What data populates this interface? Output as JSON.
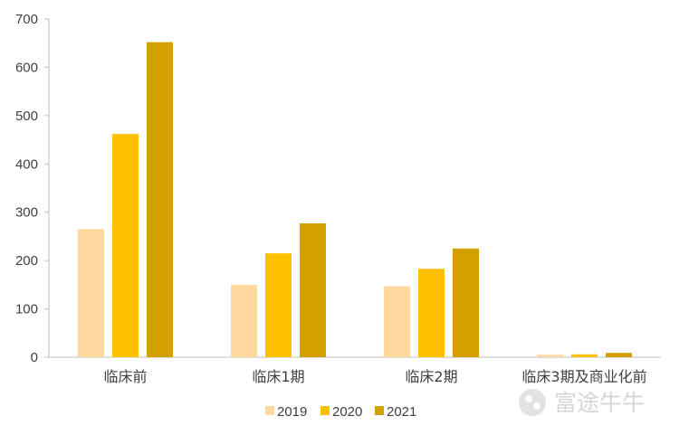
{
  "chart_data": {
    "type": "bar",
    "categories": [
      "临床前",
      "临床1期",
      "临床2期",
      "临床3期及商业化前"
    ],
    "series": [
      {
        "name": "2019",
        "values": [
          265,
          150,
          147,
          5
        ],
        "color": "#FFD8A0"
      },
      {
        "name": "2020",
        "values": [
          462,
          215,
          183,
          6
        ],
        "color": "#FFC000"
      },
      {
        "name": "2021",
        "values": [
          652,
          277,
          225,
          9
        ],
        "color": "#D4A000"
      }
    ],
    "ylim": [
      0,
      700
    ],
    "yticks": [
      0,
      100,
      200,
      300,
      400,
      500,
      600,
      700
    ],
    "grid": false,
    "legend_position": "bottom"
  },
  "watermark": {
    "text": "富途牛牛",
    "icon": "futu-logo-icon"
  }
}
